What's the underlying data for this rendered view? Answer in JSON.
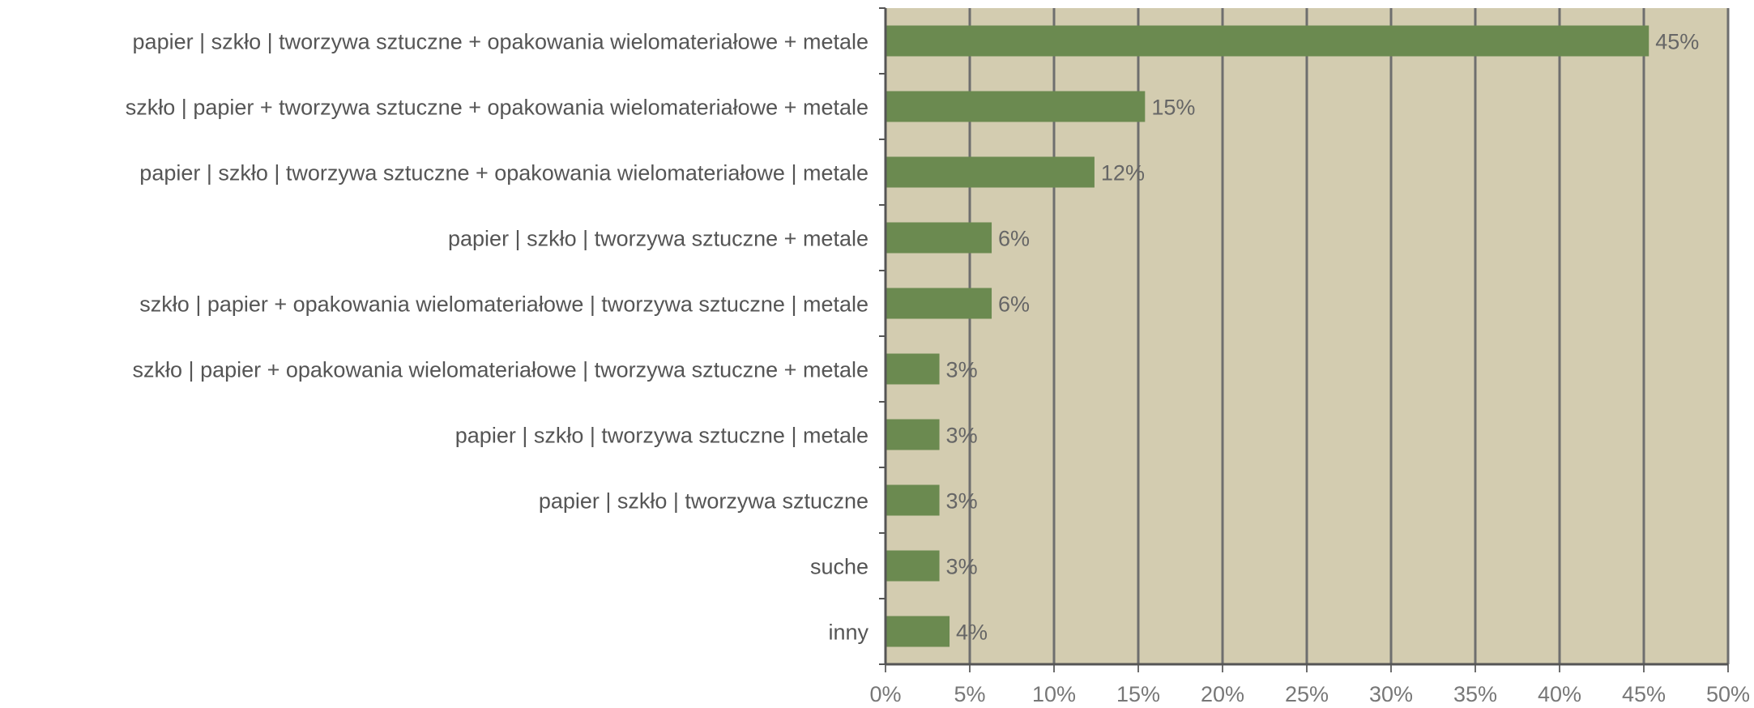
{
  "chart_data": {
    "type": "bar",
    "orientation": "horizontal",
    "title": "",
    "xlabel": "",
    "ylabel": "",
    "categories": [
      "papier | szkło | tworzywa sztuczne + opakowania wielomateriałowe + metale",
      "szkło | papier + tworzywa sztuczne + opakowania wielomateriałowe + metale",
      "papier | szkło | tworzywa sztuczne + opakowania wielomateriałowe | metale",
      "papier | szkło | tworzywa sztuczne + metale",
      "szkło | papier + opakowania wielomateriałowe | tworzywa sztuczne | metale",
      "szkło | papier + opakowania wielomateriałowe | tworzywa sztuczne + metale",
      "papier | szkło | tworzywa sztuczne | metale",
      "papier | szkło | tworzywa sztuczne",
      "suche",
      "inny"
    ],
    "values": [
      45.3,
      15.4,
      12.4,
      6.3,
      6.3,
      3.2,
      3.2,
      3.2,
      3.2,
      3.8
    ],
    "value_labels": [
      "45%",
      "15%",
      "12%",
      "6%",
      "6%",
      "3%",
      "3%",
      "3%",
      "3%",
      "4%"
    ],
    "xlim": [
      0,
      50
    ],
    "xticks": [
      0,
      5,
      10,
      15,
      20,
      25,
      30,
      35,
      40,
      45,
      50
    ],
    "xtick_labels": [
      "0%",
      "5%",
      "10%",
      "15%",
      "20%",
      "25%",
      "30%",
      "35%",
      "40%",
      "45%",
      "50%"
    ],
    "grid": "vertical",
    "legend": "none",
    "colors": {
      "bar": "#6b8a50",
      "plot_background": "#d3ccb0",
      "gridline": "#6e6e6e"
    }
  }
}
